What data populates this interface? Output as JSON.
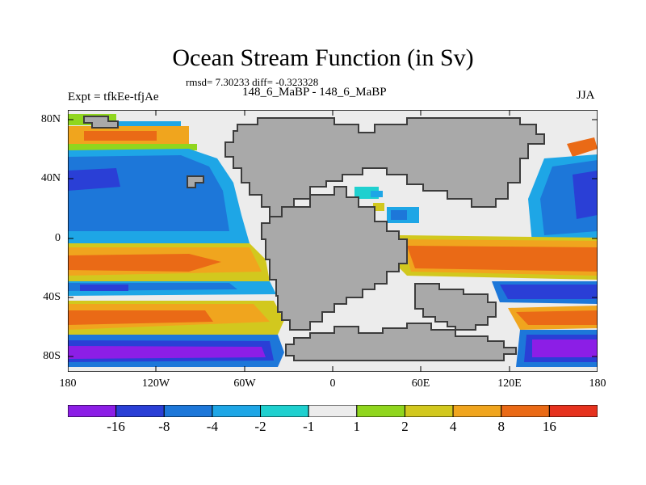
{
  "title": "Ocean Stream Function (in Sv)",
  "stats": "rmsd= 7.30233 diff= -0.323328",
  "left_label": "Expt = tfkEe-tfjAe",
  "center_label": "148_6_MaBP - 148_6_MaBP",
  "right_label": "JJA",
  "map": {
    "y_ticks": [
      "80N",
      "40N",
      "0",
      "40S",
      "80S"
    ],
    "x_ticks": [
      "180",
      "120W",
      "60W",
      "0",
      "60E",
      "120E",
      "180"
    ],
    "land_color": "#a9a9a9",
    "coast_color": "#3c3c3c"
  },
  "colorbar": {
    "colors": [
      "#8c1ee6",
      "#2a3fd6",
      "#1d77d9",
      "#1ea6e6",
      "#1fd0cf",
      "#ececec",
      "#90d61e",
      "#d2c81e",
      "#f0a51e",
      "#ea6a16",
      "#e6321e"
    ],
    "labels": [
      "-16",
      "-8",
      "-4",
      "-2",
      "-1",
      "1",
      "2",
      "4",
      "8",
      "16"
    ]
  }
}
